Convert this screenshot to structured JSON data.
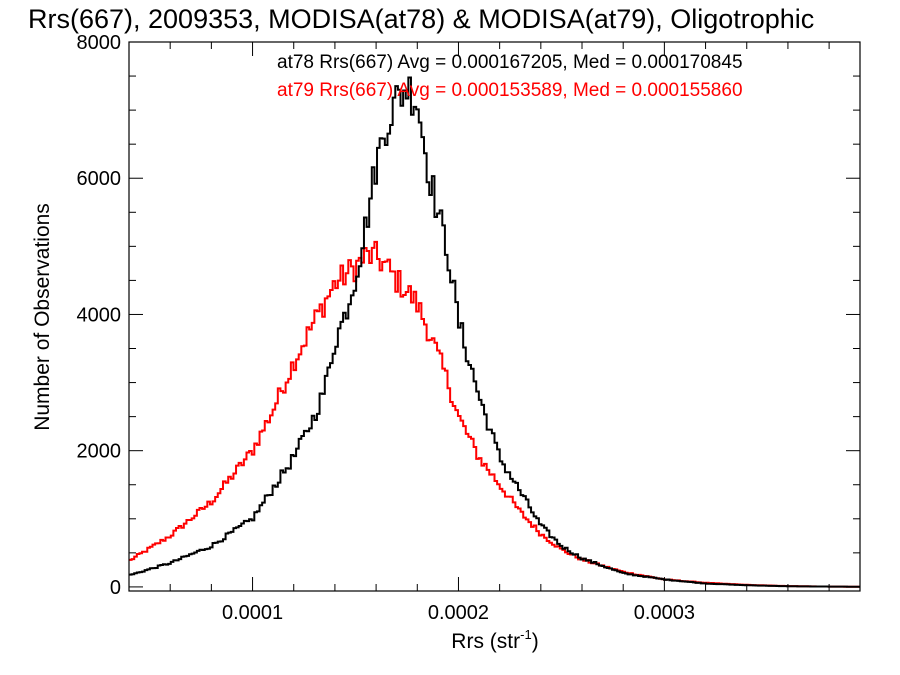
{
  "chart_data": {
    "type": "line",
    "style": "step histogram",
    "title": "Rrs(667), 2009353, MODISA(at78) & MODISA(at79), Oligotrophic",
    "xlabel": "Rrs (str",
    "xlabel_exponent": "-1",
    "xlabel_suffix": ")",
    "ylabel": "Number of Observations",
    "xlim": [
      4e-05,
      0.000395
    ],
    "ylim": [
      -60,
      8000
    ],
    "x_ticks": [
      0.0001,
      0.0002,
      0.0003
    ],
    "x_tick_labels": [
      "0.0001",
      "0.0002",
      "0.0003"
    ],
    "y_ticks": [
      0,
      2000,
      4000,
      6000,
      8000
    ],
    "y_tick_labels": [
      "0",
      "2000",
      "4000",
      "6000",
      "8000"
    ],
    "grid": false,
    "legend_placement": "top-right",
    "series": [
      {
        "name": "at78",
        "color": "#000000",
        "legend_text": "at78 Rrs(667) Avg = 0.000167205, Med = 0.000170845",
        "x": [
          4e-05,
          6e-05,
          8e-05,
          0.0001,
          0.00011,
          0.00012,
          0.00013,
          0.000135,
          0.00014,
          0.000145,
          0.00015,
          0.000155,
          0.00016,
          0.000165,
          0.00017,
          0.000175,
          0.00018,
          0.000185,
          0.00019,
          0.000195,
          0.0002,
          0.00021,
          0.00022,
          0.00023,
          0.00024,
          0.00025,
          0.00026,
          0.00028,
          0.0003,
          0.00032,
          0.00034,
          0.00036,
          0.00038,
          0.000395
        ],
        "values": [
          170,
          350,
          600,
          1000,
          1450,
          1900,
          2500,
          2900,
          3600,
          4000,
          4550,
          5300,
          6200,
          6800,
          7150,
          7350,
          7150,
          6200,
          5500,
          4900,
          3900,
          2800,
          1900,
          1400,
          900,
          600,
          420,
          200,
          110,
          50,
          25,
          10,
          5,
          2
        ]
      },
      {
        "name": "at79",
        "color": "#ff0000",
        "legend_text": "at79 Rrs(667) Avg = 0.000153589, Med = 0.000155860",
        "x": [
          4e-05,
          6e-05,
          8e-05,
          0.0001,
          0.00011,
          0.00012,
          0.00013,
          0.00014,
          0.00015,
          0.000155,
          0.00016,
          0.000165,
          0.00017,
          0.000175,
          0.00018,
          0.000185,
          0.00019,
          0.000195,
          0.0002,
          0.00021,
          0.00022,
          0.00023,
          0.00024,
          0.00025,
          0.00026,
          0.00028,
          0.0003,
          0.00032,
          0.00034,
          0.00036,
          0.00038,
          0.000395
        ],
        "values": [
          380,
          750,
          1250,
          2000,
          2600,
          3300,
          3900,
          4450,
          4700,
          4850,
          4850,
          4700,
          4500,
          4350,
          4150,
          3800,
          3400,
          3000,
          2500,
          1900,
          1500,
          1100,
          780,
          550,
          400,
          220,
          110,
          60,
          30,
          12,
          5,
          2
        ]
      }
    ]
  }
}
